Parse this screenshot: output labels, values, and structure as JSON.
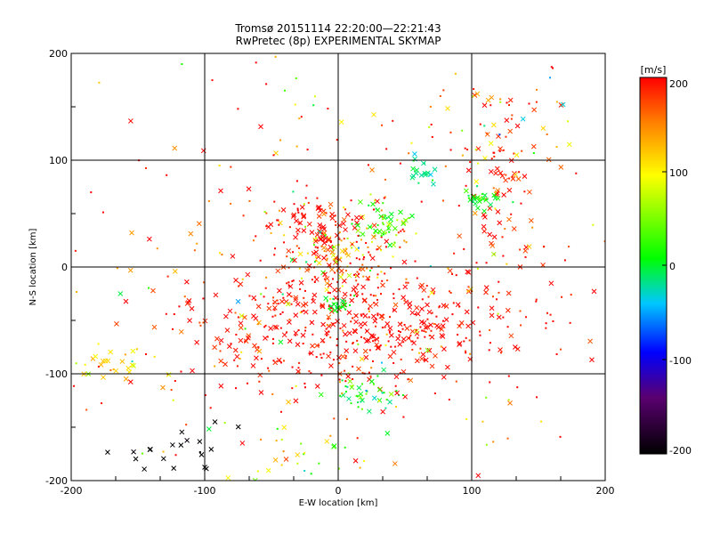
{
  "chart_data": {
    "type": "scatter",
    "title": "Tromsø 20151114 22:20:00—22:21:43",
    "subtitle": "RwPretec (8p) EXPERIMENTAL SKYMAP",
    "xlabel": "E-W location [km]",
    "ylabel": "N-S location [km]",
    "xlim": [
      -200,
      200
    ],
    "ylim": [
      -200,
      200
    ],
    "x_ticks": [
      "-200",
      "-100",
      "0",
      "100",
      "200"
    ],
    "y_ticks": [
      "-200",
      "-100",
      "0",
      "100",
      "200"
    ],
    "grid": true,
    "colorbar": {
      "label": "[m/s]",
      "range": [
        -200,
        200
      ],
      "ticks": [
        "-200",
        "-100",
        "0",
        "100",
        "200"
      ],
      "colors": [
        "#000000",
        "#5a0070",
        "#0000ff",
        "#00c8ff",
        "#00ff00",
        "#ffff00",
        "#ff0000"
      ]
    },
    "marker_types": [
      "x",
      "dot"
    ],
    "clusters": [
      {
        "x": 20,
        "y": -55,
        "sx": 45,
        "sy": 28,
        "n": 260,
        "v": 200,
        "vs": 15,
        "xfrac": 0.5
      },
      {
        "x": 0,
        "y": 15,
        "sx": 25,
        "sy": 20,
        "n": 160,
        "v": 150,
        "vs": 70,
        "xfrac": 0.35
      },
      {
        "x": 120,
        "y": 80,
        "sx": 12,
        "sy": 35,
        "n": 70,
        "v": 190,
        "vs": 20,
        "xfrac": 0.6
      },
      {
        "x": 70,
        "y": -50,
        "sx": 60,
        "sy": 30,
        "n": 120,
        "v": 195,
        "vs": 15,
        "xfrac": 0.3
      },
      {
        "x": -70,
        "y": -60,
        "sx": 40,
        "sy": 30,
        "n": 100,
        "v": 195,
        "vs": 20,
        "xfrac": 0.6
      },
      {
        "x": -20,
        "y": 40,
        "sx": 15,
        "sy": 12,
        "n": 60,
        "v": 200,
        "vs": 10,
        "xfrac": 0.7
      },
      {
        "x": 40,
        "y": 40,
        "sx": 10,
        "sy": 10,
        "n": 45,
        "v": 30,
        "vs": 25,
        "xfrac": 0.4
      },
      {
        "x": 20,
        "y": -120,
        "sx": 12,
        "sy": 8,
        "n": 45,
        "v": 10,
        "vs": 30,
        "xfrac": 0.4
      },
      {
        "x": 0,
        "y": -35,
        "sx": 5,
        "sy": 4,
        "n": 25,
        "v": 10,
        "vs": 10,
        "xfrac": 0.3
      },
      {
        "x": 65,
        "y": 90,
        "sx": 8,
        "sy": 8,
        "n": 20,
        "v": -20,
        "vs": 15,
        "xfrac": 0.7
      },
      {
        "x": 105,
        "y": 65,
        "sx": 8,
        "sy": 6,
        "n": 25,
        "v": 10,
        "vs": 15,
        "xfrac": 0.6
      },
      {
        "x": -170,
        "y": -90,
        "sx": 12,
        "sy": 10,
        "n": 25,
        "v": 110,
        "vs": 20,
        "xfrac": 0.7
      },
      {
        "x": -120,
        "y": -170,
        "sx": 25,
        "sy": 12,
        "n": 20,
        "v": -200,
        "vs": 5,
        "xfrac": 0.8
      },
      {
        "x": -40,
        "y": -170,
        "sx": 25,
        "sy": 15,
        "n": 25,
        "v": 80,
        "vs": 60,
        "xfrac": 0.5
      },
      {
        "x": 130,
        "y": 140,
        "sx": 30,
        "sy": 25,
        "n": 30,
        "v": 100,
        "vs": 90,
        "xfrac": 0.5
      },
      {
        "x": 0,
        "y": 0,
        "sx": 110,
        "sy": 110,
        "n": 380,
        "v": 170,
        "vs": 80,
        "xfrac": 0.25
      }
    ]
  }
}
